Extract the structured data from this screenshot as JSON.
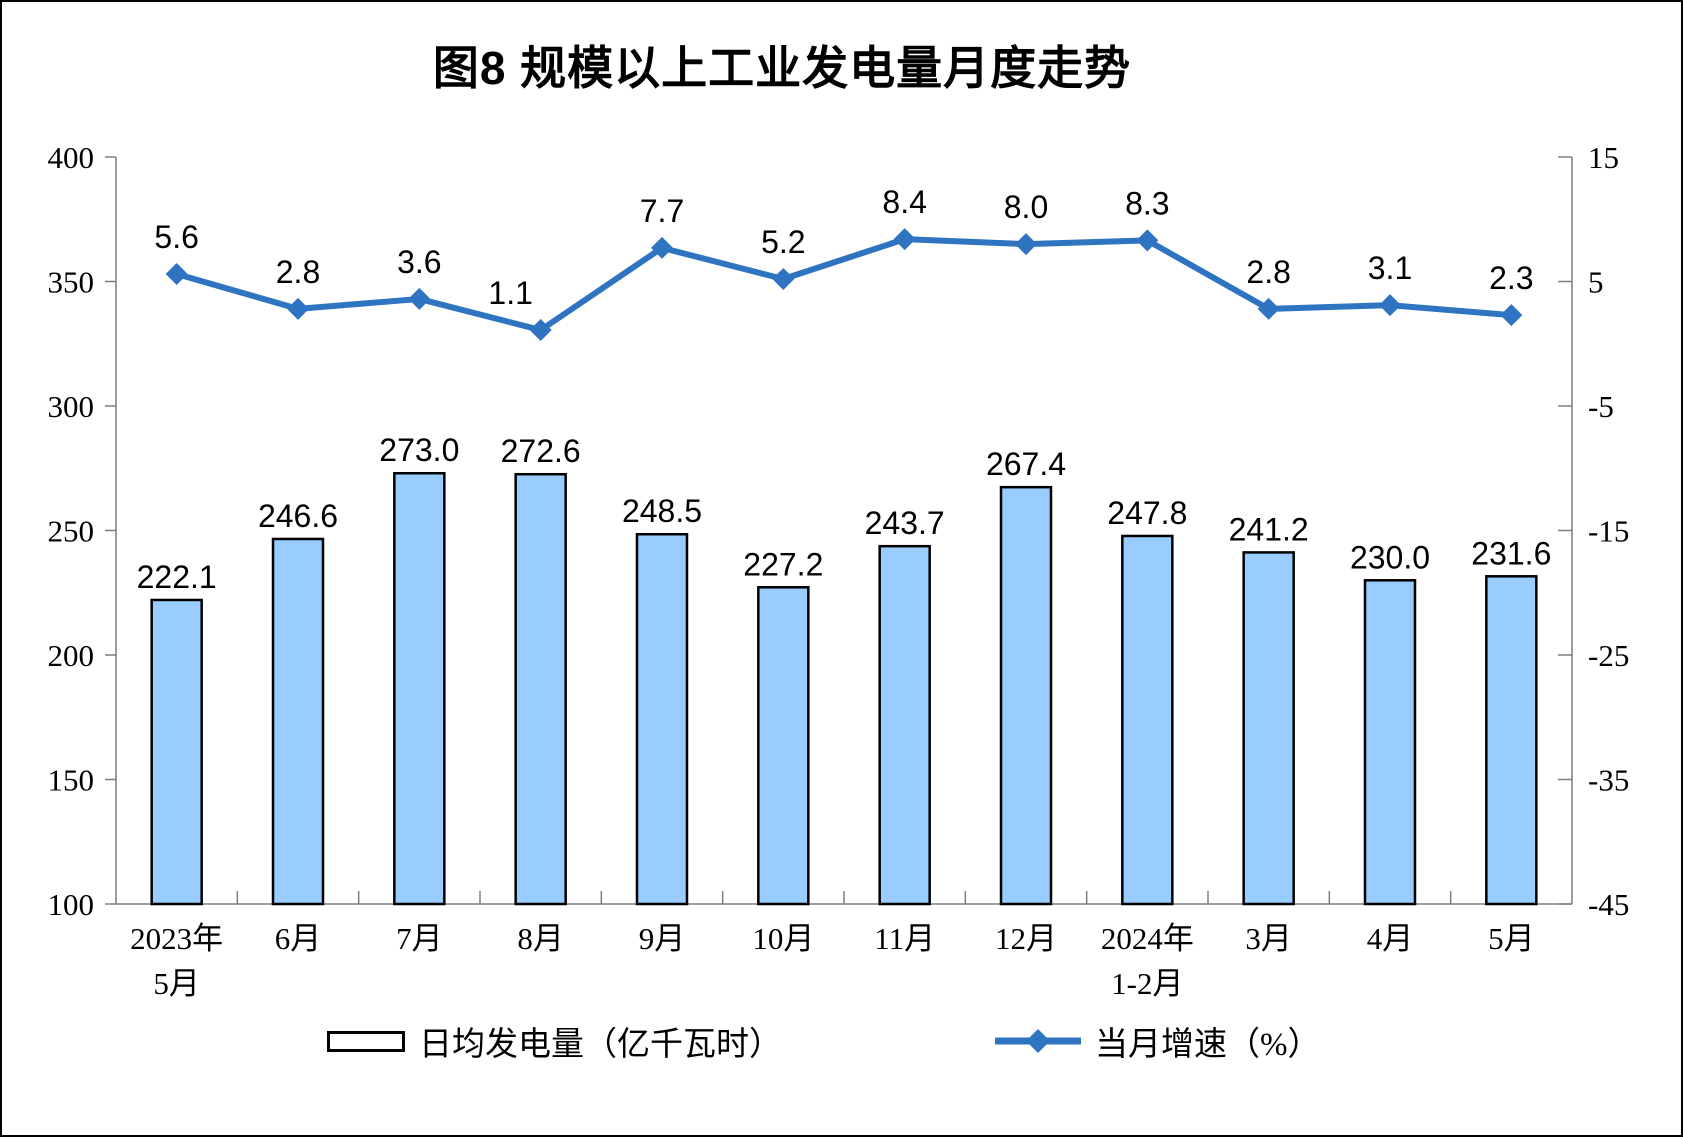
{
  "figure": {
    "title": "图8 规模以上工业发电量月度走势"
  },
  "chart_data": {
    "type": "bar+line",
    "title": "图8 规模以上工业发电量月度走势",
    "categories": [
      [
        "2023年",
        "5月"
      ],
      [
        "6月"
      ],
      [
        "7月"
      ],
      [
        "8月"
      ],
      [
        "9月"
      ],
      [
        "10月"
      ],
      [
        "11月"
      ],
      [
        "12月"
      ],
      [
        "2024年",
        "1-2月"
      ],
      [
        "3月"
      ],
      [
        "4月"
      ],
      [
        "5月"
      ]
    ],
    "series": [
      {
        "name": "日均发电量（亿千瓦时）",
        "type": "bar",
        "axis": "left",
        "color": "#99CCFF",
        "border_color": "#000000",
        "values": [
          222.1,
          246.6,
          273.0,
          272.6,
          248.5,
          227.2,
          243.7,
          267.4,
          247.8,
          241.2,
          230.0,
          231.6
        ]
      },
      {
        "name": "当月增速（%）",
        "type": "line",
        "axis": "right",
        "color": "#2E74C0",
        "marker": "diamond",
        "values": [
          5.6,
          2.8,
          3.6,
          1.1,
          7.7,
          5.2,
          8.4,
          8.0,
          8.3,
          2.8,
          3.1,
          2.3
        ]
      }
    ],
    "left_axis": {
      "min": 100,
      "max": 400,
      "step": 50,
      "ticks": [
        "100",
        "150",
        "200",
        "250",
        "300",
        "350",
        "400"
      ]
    },
    "right_axis": {
      "min": -45,
      "max": 15,
      "step": 10,
      "ticks": [
        "-45",
        "-35",
        "-25",
        "-15",
        "-5",
        "5",
        "15"
      ]
    },
    "data_labels": true,
    "label_decimals": 1,
    "grid": false,
    "legend_position": "bottom",
    "axis_line_color": "#7F7F7F",
    "text_color": "#000000"
  }
}
